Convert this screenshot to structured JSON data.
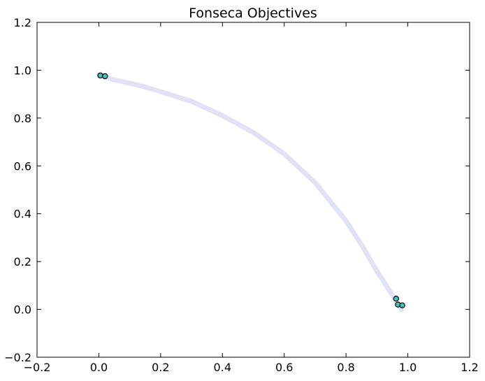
{
  "chart_data": {
    "type": "scatter",
    "title": "Fonseca Objectives",
    "xlabel": "",
    "ylabel": "",
    "xlim": [
      -0.2,
      1.2
    ],
    "ylim": [
      -0.2,
      1.2
    ],
    "x_ticks": [
      -0.2,
      0.0,
      0.2,
      0.4,
      0.6,
      0.8,
      1.0,
      1.2
    ],
    "y_ticks": [
      -0.2,
      0.0,
      0.2,
      0.4,
      0.6,
      0.8,
      1.0,
      1.2
    ],
    "x_tick_labels": [
      "−0.2",
      "0.0",
      "0.2",
      "0.4",
      "0.6",
      "0.8",
      "1.0",
      "1.2"
    ],
    "y_tick_labels": [
      "−0.2",
      "0.0",
      "0.2",
      "0.4",
      "0.6",
      "0.8",
      "1.0",
      "1.2"
    ],
    "grid": false,
    "legend": "none",
    "front_curve": {
      "x": [
        0.0,
        0.02,
        0.05,
        0.1,
        0.15,
        0.2,
        0.3,
        0.4,
        0.5,
        0.6,
        0.7,
        0.8,
        0.85,
        0.9,
        0.94,
        0.97,
        0.98
      ],
      "y": [
        0.98,
        0.97,
        0.96,
        0.945,
        0.93,
        0.91,
        0.87,
        0.81,
        0.74,
        0.65,
        0.53,
        0.37,
        0.27,
        0.16,
        0.08,
        0.02,
        0.0
      ],
      "color": "#d8d8f2"
    },
    "points": [
      {
        "x": 0.005,
        "y": 0.978
      },
      {
        "x": 0.02,
        "y": 0.975
      },
      {
        "x": 0.962,
        "y": 0.045
      },
      {
        "x": 0.968,
        "y": 0.02
      },
      {
        "x": 0.982,
        "y": 0.017
      }
    ],
    "marker_color": "#40c8c0",
    "marker_edge_color": "#000000"
  }
}
